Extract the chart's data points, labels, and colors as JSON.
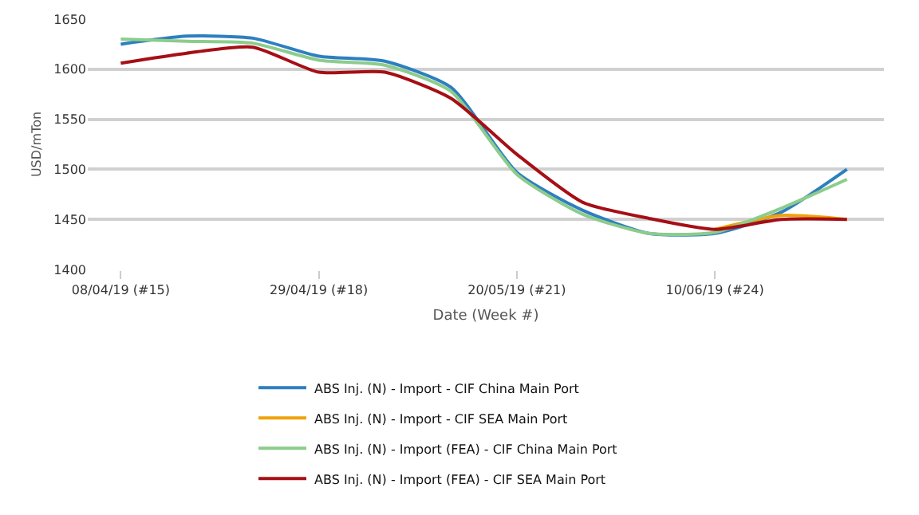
{
  "chart_data": {
    "type": "line",
    "xlabel": "Date (Week #)",
    "ylabel": "USD/mTon",
    "x": [
      "2019-04-08",
      "2019-04-15",
      "2019-04-22",
      "2019-04-29",
      "2019-05-06",
      "2019-05-13",
      "2019-05-20",
      "2019-05-27",
      "2019-06-03",
      "2019-06-10",
      "2019-06-17",
      "2019-06-24"
    ],
    "series": [
      {
        "name": "ABS Inj. (N) - Import - CIF China Main Port",
        "color": "#2e7fbf",
        "values": [
          1625,
          1633,
          1631,
          1613,
          1608,
          1582,
          1497,
          1459,
          1436,
          1436,
          1457,
          1500
        ]
      },
      {
        "name": "ABS Inj. (N) - Import - CIF SEA Main Port",
        "color": "#f0a30a",
        "values": [
          null,
          null,
          null,
          null,
          null,
          null,
          null,
          null,
          null,
          1440,
          1454,
          1450
        ]
      },
      {
        "name": "ABS Inj. (N) - Import (FEA) - CIF China Main Port",
        "color": "#8ccc8c",
        "values": [
          1630,
          1628,
          1626,
          1609,
          1604,
          1578,
          1495,
          1455,
          1436,
          1437,
          1461,
          1490
        ]
      },
      {
        "name": "ABS Inj. (N) - Import (FEA) - CIF SEA Main Port",
        "color": "#a50f15",
        "values": [
          1606,
          1616,
          1622,
          1597,
          1597,
          1571,
          1515,
          1467,
          1451,
          1440,
          1450,
          1450
        ]
      }
    ],
    "xlim": [
      "2019-04-04T12:00",
      "2019-06-27T22:00"
    ],
    "xticks": [
      {
        "value": "2019-04-08",
        "label": "08/04/19 (#15)"
      },
      {
        "value": "2019-04-29",
        "label": "29/04/19 (#18)"
      },
      {
        "value": "2019-05-20",
        "label": "20/05/19 (#21)"
      },
      {
        "value": "2019-06-10",
        "label": "10/06/19 (#24)"
      }
    ],
    "ylim": [
      1400,
      1650
    ],
    "yticks": [
      1400,
      1450,
      1500,
      1550,
      1600,
      1650
    ],
    "grid": "y",
    "legend": "bottom",
    "marker": "none",
    "line_style": "solid"
  }
}
